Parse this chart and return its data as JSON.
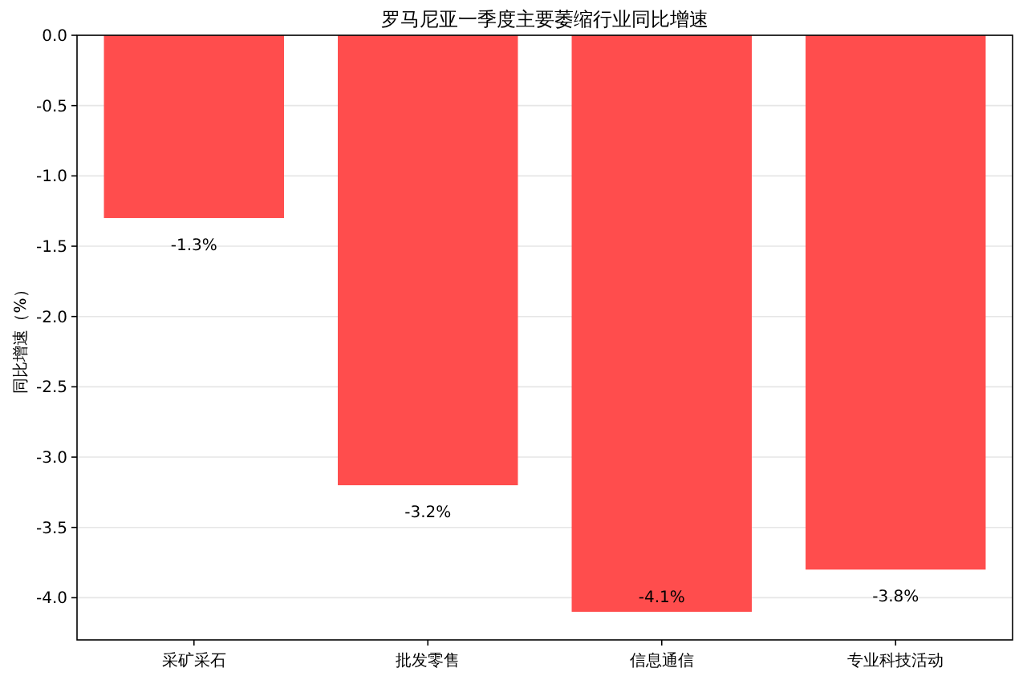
{
  "chart_data": {
    "type": "bar",
    "title": "罗马尼亚一季度主要萎缩行业同比增速",
    "ylabel": "同比增速（%）",
    "categories": [
      "采矿采石",
      "批发零售",
      "信息通信",
      "专业科技活动"
    ],
    "values": [
      -1.3,
      -3.2,
      -4.1,
      -3.8
    ],
    "color": "#ff4d4d",
    "value_labels": [
      "-1.3%",
      "-3.2%",
      "-4.1%",
      "-3.8%"
    ],
    "ylim": [
      -4.3,
      0
    ],
    "yticks": [
      {
        "value": 0,
        "label": "0.0"
      },
      -0.5,
      {
        "value": -1,
        "label": "-1.0"
      },
      -1.5,
      {
        "value": -2,
        "label": "-2.0"
      },
      -2.5,
      {
        "value": -3,
        "label": "-3.0"
      },
      -3.5,
      {
        "value": -4,
        "label": "-4.0"
      }
    ],
    "grid": "y"
  }
}
